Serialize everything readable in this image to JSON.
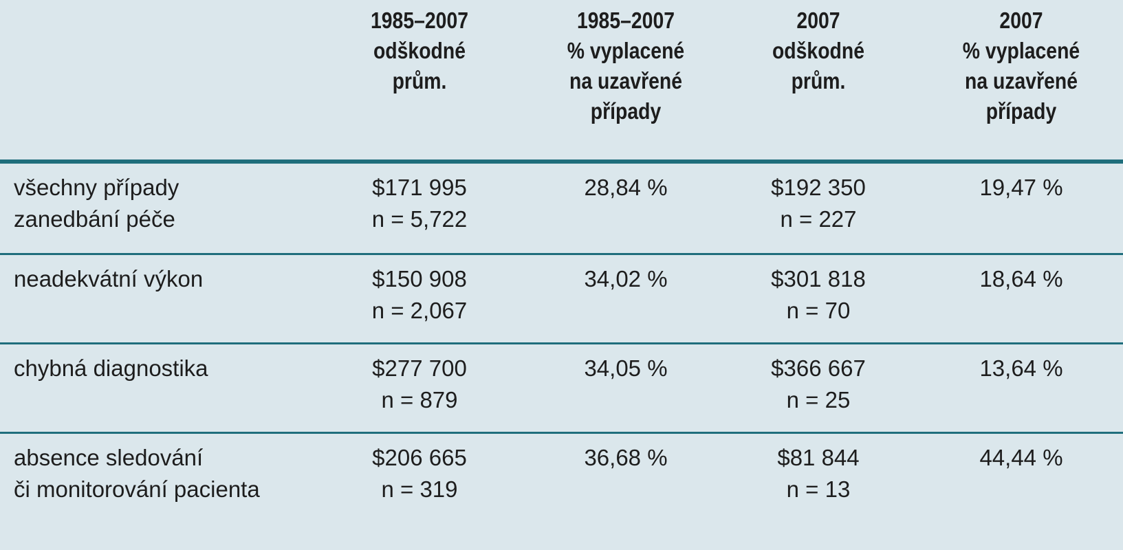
{
  "header": {
    "col1": [
      "1985–2007",
      "odškodné",
      "prům."
    ],
    "col2": [
      "1985–2007",
      "% vyplacené",
      "na uzavřené",
      "případy"
    ],
    "col3": [
      "2007",
      "odškodné",
      "prům."
    ],
    "col4": [
      "2007",
      "% vyplacené",
      "na uzavřené",
      "případy"
    ]
  },
  "rows": [
    {
      "label": [
        "všechny případy",
        "zanedbání péče"
      ],
      "avg_1985_2007": "$171 995",
      "n_1985_2007": "n = 5,722",
      "pct_1985_2007": "28,84 %",
      "avg_2007": "$192 350",
      "n_2007": "n = 227",
      "pct_2007": "19,47 %"
    },
    {
      "label": [
        "neadekvátní výkon"
      ],
      "avg_1985_2007": "$150 908",
      "n_1985_2007": "n = 2,067",
      "pct_1985_2007": "34,02 %",
      "avg_2007": "$301 818",
      "n_2007": "n = 70",
      "pct_2007": "18,64 %"
    },
    {
      "label": [
        "chybná diagnostika"
      ],
      "avg_1985_2007": "$277 700",
      "n_1985_2007": "n = 879",
      "pct_1985_2007": "34,05 %",
      "avg_2007": "$366 667",
      "n_2007": "n = 25",
      "pct_2007": "13,64 %"
    },
    {
      "label": [
        "absence sledování",
        "či monitorování pacienta"
      ],
      "avg_1985_2007": "$206 665",
      "n_1985_2007": "n = 319",
      "pct_1985_2007": "36,68 %",
      "avg_2007": "$81 844",
      "n_2007": "n = 13",
      "pct_2007": "44,44 %"
    }
  ],
  "colors": {
    "background": "#dbe7ec",
    "rule": "#1f6e7c",
    "text": "#1d1d1d"
  }
}
